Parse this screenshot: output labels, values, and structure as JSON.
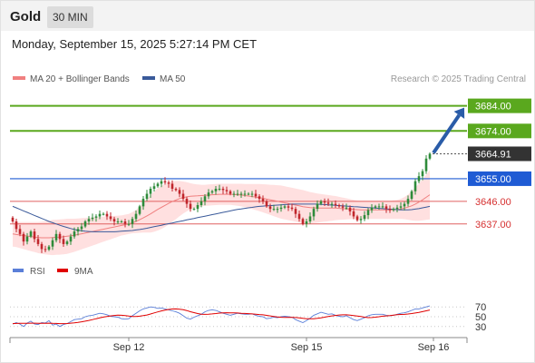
{
  "header": {
    "symbol": "Gold",
    "timeframe": "30 MIN"
  },
  "date_text": "Monday, September 15, 2025 5:27:14 PM CET",
  "source_text": "Research © 2025 Trading Central",
  "colors": {
    "up": "#2e8b3a",
    "down": "#c0262c",
    "level_green": "#5aa81e",
    "level_blue": "#1f5bd4",
    "level_red": "#e06060",
    "ma20": "#f08080",
    "ma50": "#3a5a9a",
    "band": "#ffd6d6",
    "rsi": "#5b7fd8",
    "ma9": "#e00000",
    "last_price": "#333333",
    "arrow": "#2a5ca8"
  },
  "chart_data": [
    {
      "type": "candlestick",
      "legend": [
        {
          "label": "MA 20 + Bollinger Bands",
          "color": "#f08080"
        },
        {
          "label": "MA 50",
          "color": "#3a5a9a"
        }
      ],
      "y_range": [
        3625,
        3690
      ],
      "x_ticks": [
        {
          "label": "Sep 12",
          "index": 32
        },
        {
          "label": "Sep 15",
          "index": 81
        },
        {
          "label": "Sep 16",
          "index": 116
        }
      ],
      "levels": [
        {
          "value": 3684,
          "label": "3684.00",
          "kind": "resistance"
        },
        {
          "value": 3674,
          "label": "3674.00",
          "kind": "resistance"
        },
        {
          "value": 3655,
          "label": "3655.00",
          "kind": "pivot"
        },
        {
          "value": 3646,
          "label": "3646.00",
          "kind": "support"
        },
        {
          "value": 3637,
          "label": "3637.00",
          "kind": "support"
        }
      ],
      "last_price": {
        "value": 3664.91,
        "label": "3664.91"
      },
      "target_arrow": {
        "from": 3664.91,
        "to": 3684
      },
      "close": [
        3638.0,
        3635.0,
        3633.0,
        3630.0,
        3632.0,
        3634.0,
        3631.0,
        3629.0,
        3627.0,
        3626.8,
        3628.0,
        3630.5,
        3633.0,
        3631.0,
        3629.0,
        3630.0,
        3632.0,
        3634.0,
        3635.0,
        3636.0,
        3638.0,
        3639.0,
        3639.5,
        3640.0,
        3641.0,
        3641.0,
        3640.0,
        3639.0,
        3638.0,
        3638.0,
        3638.0,
        3637.0,
        3637.0,
        3639.0,
        3641.0,
        3644.0,
        3647.0,
        3649.0,
        3651.0,
        3652.0,
        3653.0,
        3654.0,
        3653.5,
        3653.0,
        3651.0,
        3650.5,
        3649.0,
        3647.0,
        3645.0,
        3643.0,
        3643.0,
        3644.5,
        3646.0,
        3648.0,
        3649.5,
        3650.0,
        3651.0,
        3651.0,
        3650.5,
        3650.0,
        3649.0,
        3649.0,
        3649.0,
        3649.0,
        3649.0,
        3649.0,
        3649.0,
        3648.0,
        3647.0,
        3646.0,
        3644.0,
        3643.0,
        3643.0,
        3643.0,
        3643.5,
        3644.0,
        3643.5,
        3643.0,
        3641.0,
        3639.0,
        3637.0,
        3638.0,
        3640.0,
        3643.0,
        3645.0,
        3646.0,
        3645.5,
        3645.0,
        3645.0,
        3644.5,
        3644.0,
        3643.5,
        3643.5,
        3642.0,
        3640.0,
        3638.5,
        3639.0,
        3640.5,
        3642.5,
        3643.5,
        3644.0,
        3644.0,
        3644.0,
        3643.0,
        3642.5,
        3643.0,
        3643.5,
        3644.0,
        3645.0,
        3647.0,
        3650.0,
        3654.0,
        3656.0,
        3658.0,
        3663.0,
        3664.91
      ],
      "ma20": [
        3633.0,
        3632.8,
        3632.6,
        3632.4,
        3632.2,
        3632.0,
        3631.8,
        3631.6,
        3631.5,
        3631.5,
        3631.5,
        3631.6,
        3631.7,
        3631.8,
        3631.9,
        3632.1,
        3632.3,
        3632.5,
        3632.8,
        3633.1,
        3633.4,
        3633.7,
        3634.0,
        3634.3,
        3634.6,
        3634.9,
        3635.2,
        3635.5,
        3635.8,
        3636.1,
        3636.4,
        3636.7,
        3637.0,
        3637.5,
        3638.0,
        3638.7,
        3639.4,
        3640.2,
        3641.0,
        3641.9,
        3642.8,
        3643.6,
        3644.4,
        3645.2,
        3645.9,
        3646.5,
        3647.1,
        3647.5,
        3647.8,
        3648.0,
        3648.1,
        3648.2,
        3648.3,
        3648.4,
        3648.5,
        3648.6,
        3648.7,
        3648.8,
        3648.8,
        3648.8,
        3648.8,
        3648.7,
        3648.6,
        3648.5,
        3648.3,
        3648.1,
        3647.9,
        3647.7,
        3647.5,
        3647.2,
        3646.9,
        3646.6,
        3646.3,
        3646.0,
        3645.7,
        3645.4,
        3645.1,
        3644.8,
        3644.5,
        3644.2,
        3643.9,
        3643.7,
        3643.5,
        3643.4,
        3643.3,
        3643.3,
        3643.3,
        3643.3,
        3643.3,
        3643.3,
        3643.2,
        3643.1,
        3643.0,
        3642.9,
        3642.8,
        3642.7,
        3642.6,
        3642.6,
        3642.6,
        3642.6,
        3642.6,
        3642.6,
        3642.6,
        3642.6,
        3642.6,
        3642.7,
        3642.8,
        3643.0,
        3643.3,
        3643.7,
        3644.2,
        3644.9,
        3645.7,
        3646.6,
        3647.6,
        3648.6
      ],
      "ma50": [
        3644.0,
        3643.4,
        3642.8,
        3642.2,
        3641.6,
        3641.0,
        3640.4,
        3639.8,
        3639.2,
        3638.6,
        3638.0,
        3637.5,
        3637.0,
        3636.5,
        3636.0,
        3635.6,
        3635.2,
        3634.8,
        3634.5,
        3634.3,
        3634.1,
        3634.0,
        3633.9,
        3633.9,
        3633.9,
        3633.9,
        3633.9,
        3633.9,
        3633.9,
        3634.0,
        3634.1,
        3634.2,
        3634.3,
        3634.4,
        3634.6,
        3634.8,
        3635.0,
        3635.3,
        3635.6,
        3635.9,
        3636.2,
        3636.5,
        3636.8,
        3637.1,
        3637.4,
        3637.7,
        3638.0,
        3638.3,
        3638.6,
        3638.9,
        3639.2,
        3639.5,
        3639.8,
        3640.1,
        3640.4,
        3640.7,
        3641.0,
        3641.3,
        3641.6,
        3641.9,
        3642.2,
        3642.5,
        3642.8,
        3643.0,
        3643.2,
        3643.4,
        3643.6,
        3643.8,
        3644.0,
        3644.1,
        3644.2,
        3644.3,
        3644.4,
        3644.5,
        3644.6,
        3644.7,
        3644.8,
        3644.9,
        3644.9,
        3644.9,
        3644.9,
        3644.9,
        3644.9,
        3644.9,
        3644.9,
        3644.8,
        3644.7,
        3644.6,
        3644.5,
        3644.4,
        3644.3,
        3644.2,
        3644.1,
        3644.0,
        3643.9,
        3643.8,
        3643.7,
        3643.6,
        3643.5,
        3643.4,
        3643.3,
        3643.2,
        3643.1,
        3643.0,
        3642.9,
        3642.8,
        3642.7,
        3642.6,
        3642.6,
        3642.6,
        3642.7,
        3642.9,
        3643.1,
        3643.4,
        3643.7,
        3644.0
      ],
      "band_width": [
        5.0,
        5.0,
        5.2,
        5.4,
        5.6,
        5.8,
        6.0,
        6.2,
        6.4,
        6.6,
        6.8,
        7.0,
        7.0,
        7.0,
        7.0,
        7.0,
        6.8,
        6.6,
        6.4,
        6.2,
        6.0,
        5.8,
        5.6,
        5.4,
        5.2,
        5.0,
        4.8,
        4.6,
        4.4,
        4.2,
        4.0,
        4.0,
        4.0,
        4.2,
        4.6,
        5.2,
        5.8,
        6.6,
        7.4,
        8.0,
        8.4,
        8.6,
        8.6,
        8.4,
        8.0,
        7.6,
        7.0,
        6.4,
        5.8,
        5.2,
        4.8,
        4.5,
        4.3,
        4.2,
        4.2,
        4.2,
        4.2,
        4.2,
        4.2,
        4.2,
        4.2,
        4.3,
        4.4,
        4.5,
        4.6,
        4.8,
        5.0,
        5.2,
        5.4,
        5.6,
        5.8,
        6.0,
        6.2,
        6.4,
        6.6,
        6.6,
        6.6,
        6.6,
        6.6,
        6.6,
        6.6,
        6.4,
        6.2,
        6.0,
        5.8,
        5.6,
        5.4,
        5.2,
        5.0,
        4.8,
        4.6,
        4.4,
        4.2,
        4.0,
        3.8,
        3.6,
        3.6,
        3.6,
        3.6,
        3.6,
        3.6,
        3.6,
        3.6,
        3.6,
        3.6,
        3.7,
        3.8,
        4.0,
        4.4,
        5.0,
        5.8,
        6.6,
        7.4,
        8.2,
        9.0,
        9.8
      ]
    },
    {
      "type": "line",
      "legend": [
        {
          "label": "RSI",
          "color": "#5b7fd8"
        },
        {
          "label": "9MA",
          "color": "#e00000"
        }
      ],
      "y_ticks": [
        {
          "value": 70,
          "label": "70"
        },
        {
          "value": 50,
          "label": "50"
        },
        {
          "value": 30,
          "label": "30"
        }
      ],
      "rsi": [
        35.0,
        38.0,
        35.0,
        30.0,
        37.0,
        41.0,
        35.0,
        34.0,
        38.0,
        37.0,
        42.0,
        33.0,
        35.0,
        30.0,
        34.0,
        36.0,
        40.0,
        44.0,
        45.0,
        46.0,
        50.0,
        52.0,
        53.0,
        55.0,
        57.0,
        56.0,
        54.0,
        51.0,
        50.0,
        49.0,
        46.0,
        45.0,
        46.0,
        52.0,
        57.0,
        62.0,
        66.0,
        68.0,
        70.0,
        69.0,
        67.0,
        68.0,
        66.0,
        64.0,
        62.0,
        60.0,
        57.0,
        52.0,
        47.0,
        45.0,
        49.0,
        52.0,
        55.0,
        60.0,
        63.0,
        64.0,
        63.0,
        60.0,
        57.0,
        55.0,
        53.0,
        55.0,
        57.0,
        56.0,
        55.0,
        55.0,
        56.0,
        53.0,
        51.0,
        50.0,
        46.0,
        47.0,
        49.0,
        48.0,
        50.0,
        51.0,
        50.0,
        49.0,
        44.0,
        41.0,
        38.0,
        42.0,
        47.0,
        53.0,
        56.0,
        59.0,
        57.0,
        55.0,
        56.0,
        53.0,
        51.0,
        50.0,
        52.0,
        48.0,
        44.0,
        42.0,
        45.0,
        48.0,
        52.0,
        54.0,
        55.0,
        55.0,
        55.0,
        53.0,
        52.0,
        53.0,
        55.0,
        57.0,
        58.0,
        60.0,
        63.0,
        66.0,
        66.0,
        68.0,
        70.0,
        72.0
      ],
      "ma9": [
        36.0,
        36.3,
        36.5,
        36.5,
        36.6,
        36.8,
        36.9,
        36.7,
        36.6,
        36.7,
        36.9,
        36.4,
        36.3,
        35.9,
        35.9,
        36.2,
        36.8,
        37.6,
        38.5,
        39.6,
        40.9,
        42.5,
        44.1,
        45.9,
        47.6,
        49.3,
        50.6,
        51.7,
        52.5,
        53.1,
        53.0,
        52.4,
        51.3,
        50.6,
        50.6,
        51.2,
        52.2,
        53.5,
        55.5,
        57.7,
        59.9,
        61.8,
        63.4,
        64.8,
        65.8,
        66.0,
        65.1,
        64.3,
        62.6,
        60.2,
        58.4,
        56.4,
        55.0,
        54.9,
        55.2,
        55.7,
        56.5,
        57.4,
        58.0,
        58.2,
        58.0,
        57.7,
        57.5,
        57.1,
        56.7,
        56.3,
        55.8,
        55.2,
        54.5,
        53.9,
        52.8,
        51.7,
        50.5,
        49.5,
        48.8,
        48.6,
        48.7,
        48.7,
        48.4,
        47.6,
        46.7,
        46.0,
        45.8,
        46.0,
        46.7,
        47.8,
        49.0,
        50.5,
        51.7,
        52.6,
        53.5,
        53.8,
        53.8,
        53.2,
        52.4,
        51.5,
        50.4,
        49.1,
        48.2,
        48.4,
        49.1,
        50.0,
        51.1,
        51.7,
        52.4,
        53.3,
        54.1,
        54.6,
        54.9,
        55.6,
        56.5,
        57.6,
        58.7,
        60.3,
        62.0,
        63.7
      ]
    }
  ]
}
